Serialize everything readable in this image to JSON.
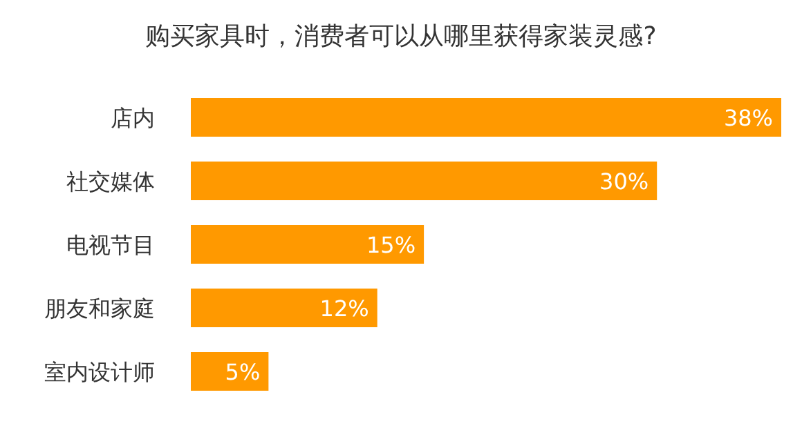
{
  "chart_data": {
    "type": "bar",
    "orientation": "horizontal",
    "title": "购买家具时，消费者可以从哪里获得家装灵感?",
    "categories": [
      "店内",
      "社交媒体",
      "电视节目",
      "朋友和家庭",
      "室内设计师"
    ],
    "values": [
      38,
      30,
      15,
      12,
      5
    ],
    "value_labels": [
      "38%",
      "30%",
      "15%",
      "12%",
      "5%"
    ],
    "color": "#ff9900"
  }
}
